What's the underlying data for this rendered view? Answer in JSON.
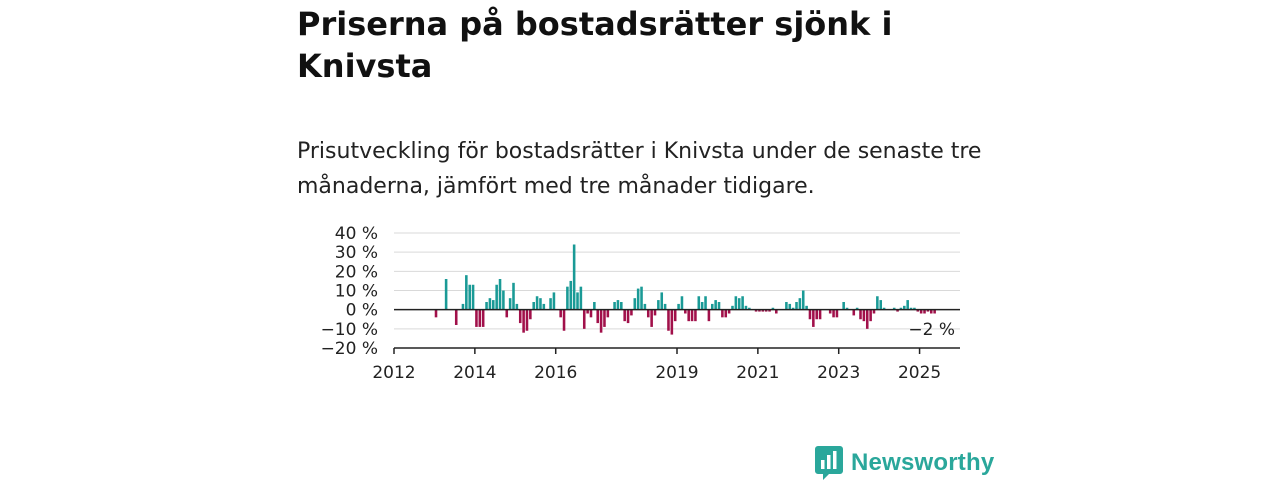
{
  "header": {
    "title": "Priserna på bostadsrätter sjönk i Knivsta",
    "subtitle": "Prisutveckling för bostadsrätter i Knivsta under de senaste tre månaderna, jämfört med tre månader tidigare."
  },
  "brand": {
    "name": "Newsworthy",
    "icon": "newsworthy-logo-icon",
    "color": "#2aa79b"
  },
  "colors": {
    "positive": "#1a9a96",
    "negative": "#a1104a",
    "grid": "#d9d9d9",
    "axis": "#222222"
  },
  "chart_data": {
    "type": "bar",
    "ylim": [
      -20,
      40
    ],
    "yticks": [
      40,
      30,
      20,
      10,
      0,
      -10,
      -20
    ],
    "ytick_labels": [
      "40 %",
      "30 %",
      "20 %",
      "10 %",
      "0 %",
      "−10 %",
      "−20 %"
    ],
    "xlim": [
      "2012-01",
      "2025-12"
    ],
    "xticks": [
      {
        "date": "2012-01",
        "label": "2012"
      },
      {
        "date": "2014-01",
        "label": "2014"
      },
      {
        "date": "2016-01",
        "label": "2016"
      },
      {
        "date": "2019-01",
        "label": "2019"
      },
      {
        "date": "2021-01",
        "label": "2021"
      },
      {
        "date": "2023-01",
        "label": "2023"
      },
      {
        "date": "2025-01",
        "label": "2025"
      }
    ],
    "grid": true,
    "last_value_label": "−2 %",
    "series": [
      {
        "points": [
          {
            "x": "2012-01",
            "y": 0
          },
          {
            "x": "2012-02",
            "y": 0
          },
          {
            "x": "2012-03",
            "y": 0
          },
          {
            "x": "2012-04",
            "y": 0
          },
          {
            "x": "2012-05",
            "y": 0
          },
          {
            "x": "2012-06",
            "y": 0
          },
          {
            "x": "2012-07",
            "y": 0
          },
          {
            "x": "2012-08",
            "y": 0
          },
          {
            "x": "2012-09",
            "y": 0
          },
          {
            "x": "2012-10",
            "y": 0
          },
          {
            "x": "2012-11",
            "y": 0
          },
          {
            "x": "2012-12",
            "y": 0
          },
          {
            "x": "2013-01",
            "y": -4
          },
          {
            "x": "2013-04",
            "y": 16
          },
          {
            "x": "2013-07",
            "y": -8
          },
          {
            "x": "2013-09",
            "y": 3
          },
          {
            "x": "2013-10",
            "y": 18
          },
          {
            "x": "2013-11",
            "y": 13
          },
          {
            "x": "2013-12",
            "y": 13
          },
          {
            "x": "2014-01",
            "y": -9
          },
          {
            "x": "2014-02",
            "y": -9
          },
          {
            "x": "2014-03",
            "y": -9
          },
          {
            "x": "2014-04",
            "y": 4
          },
          {
            "x": "2014-05",
            "y": 6
          },
          {
            "x": "2014-06",
            "y": 5
          },
          {
            "x": "2014-07",
            "y": 13
          },
          {
            "x": "2014-08",
            "y": 16
          },
          {
            "x": "2014-09",
            "y": 10
          },
          {
            "x": "2014-10",
            "y": -4
          },
          {
            "x": "2014-11",
            "y": 6
          },
          {
            "x": "2014-12",
            "y": 14
          },
          {
            "x": "2015-01",
            "y": 3
          },
          {
            "x": "2015-02",
            "y": -7
          },
          {
            "x": "2015-03",
            "y": -12
          },
          {
            "x": "2015-04",
            "y": -11
          },
          {
            "x": "2015-05",
            "y": -5
          },
          {
            "x": "2015-06",
            "y": 4
          },
          {
            "x": "2015-07",
            "y": 7
          },
          {
            "x": "2015-08",
            "y": 6
          },
          {
            "x": "2015-09",
            "y": 3
          },
          {
            "x": "2015-11",
            "y": 6
          },
          {
            "x": "2015-12",
            "y": 9
          },
          {
            "x": "2016-02",
            "y": -4
          },
          {
            "x": "2016-03",
            "y": -11
          },
          {
            "x": "2016-04",
            "y": 12
          },
          {
            "x": "2016-05",
            "y": 15
          },
          {
            "x": "2016-06",
            "y": 34
          },
          {
            "x": "2016-07",
            "y": 9
          },
          {
            "x": "2016-08",
            "y": 12
          },
          {
            "x": "2016-09",
            "y": -10
          },
          {
            "x": "2016-10",
            "y": -2
          },
          {
            "x": "2016-11",
            "y": -4
          },
          {
            "x": "2016-12",
            "y": 4
          },
          {
            "x": "2017-01",
            "y": -7
          },
          {
            "x": "2017-02",
            "y": -12
          },
          {
            "x": "2017-03",
            "y": -9
          },
          {
            "x": "2017-04",
            "y": -4
          },
          {
            "x": "2017-06",
            "y": 4
          },
          {
            "x": "2017-07",
            "y": 5
          },
          {
            "x": "2017-08",
            "y": 4
          },
          {
            "x": "2017-09",
            "y": -6
          },
          {
            "x": "2017-10",
            "y": -7
          },
          {
            "x": "2017-11",
            "y": -3
          },
          {
            "x": "2017-12",
            "y": 6
          },
          {
            "x": "2018-01",
            "y": 11
          },
          {
            "x": "2018-02",
            "y": 12
          },
          {
            "x": "2018-03",
            "y": 3
          },
          {
            "x": "2018-04",
            "y": -4
          },
          {
            "x": "2018-05",
            "y": -9
          },
          {
            "x": "2018-06",
            "y": -3
          },
          {
            "x": "2018-07",
            "y": 5
          },
          {
            "x": "2018-08",
            "y": 9
          },
          {
            "x": "2018-09",
            "y": 3
          },
          {
            "x": "2018-10",
            "y": -11
          },
          {
            "x": "2018-11",
            "y": -13
          },
          {
            "x": "2018-12",
            "y": -6
          },
          {
            "x": "2019-01",
            "y": 3
          },
          {
            "x": "2019-02",
            "y": 7
          },
          {
            "x": "2019-03",
            "y": -2
          },
          {
            "x": "2019-04",
            "y": -6
          },
          {
            "x": "2019-05",
            "y": -6
          },
          {
            "x": "2019-06",
            "y": -6
          },
          {
            "x": "2019-07",
            "y": 7
          },
          {
            "x": "2019-08",
            "y": 4
          },
          {
            "x": "2019-09",
            "y": 7
          },
          {
            "x": "2019-10",
            "y": -6
          },
          {
            "x": "2019-11",
            "y": 3
          },
          {
            "x": "2019-12",
            "y": 5
          },
          {
            "x": "2020-01",
            "y": 4
          },
          {
            "x": "2020-02",
            "y": -4
          },
          {
            "x": "2020-03",
            "y": -4
          },
          {
            "x": "2020-04",
            "y": -2
          },
          {
            "x": "2020-05",
            "y": 2
          },
          {
            "x": "2020-06",
            "y": 7
          },
          {
            "x": "2020-07",
            "y": 6
          },
          {
            "x": "2020-08",
            "y": 7
          },
          {
            "x": "2020-09",
            "y": 2
          },
          {
            "x": "2020-10",
            "y": 1
          },
          {
            "x": "2020-11",
            "y": 0
          },
          {
            "x": "2020-12",
            "y": -1
          },
          {
            "x": "2021-01",
            "y": -1
          },
          {
            "x": "2021-02",
            "y": -1
          },
          {
            "x": "2021-03",
            "y": -1
          },
          {
            "x": "2021-04",
            "y": -1
          },
          {
            "x": "2021-05",
            "y": 1
          },
          {
            "x": "2021-06",
            "y": -2
          },
          {
            "x": "2021-09",
            "y": 4
          },
          {
            "x": "2021-10",
            "y": 3
          },
          {
            "x": "2021-11",
            "y": 1
          },
          {
            "x": "2021-12",
            "y": 4
          },
          {
            "x": "2022-01",
            "y": 6
          },
          {
            "x": "2022-02",
            "y": 10
          },
          {
            "x": "2022-03",
            "y": 2
          },
          {
            "x": "2022-04",
            "y": -5
          },
          {
            "x": "2022-05",
            "y": -9
          },
          {
            "x": "2022-06",
            "y": -5
          },
          {
            "x": "2022-07",
            "y": -5
          },
          {
            "x": "2022-08",
            "y": 0
          },
          {
            "x": "2022-09",
            "y": 0
          },
          {
            "x": "2022-10",
            "y": -2
          },
          {
            "x": "2022-11",
            "y": -4
          },
          {
            "x": "2022-12",
            "y": -4
          },
          {
            "x": "2023-02",
            "y": 4
          },
          {
            "x": "2023-03",
            "y": 1
          },
          {
            "x": "2023-05",
            "y": -3
          },
          {
            "x": "2023-06",
            "y": 1
          },
          {
            "x": "2023-07",
            "y": -5
          },
          {
            "x": "2023-08",
            "y": -6
          },
          {
            "x": "2023-09",
            "y": -10
          },
          {
            "x": "2023-10",
            "y": -6
          },
          {
            "x": "2023-11",
            "y": -2
          },
          {
            "x": "2023-12",
            "y": 7
          },
          {
            "x": "2024-01",
            "y": 5
          },
          {
            "x": "2024-02",
            "y": 1
          },
          {
            "x": "2024-03",
            "y": 0
          },
          {
            "x": "2024-04",
            "y": 0
          },
          {
            "x": "2024-05",
            "y": 1
          },
          {
            "x": "2024-06",
            "y": -1
          },
          {
            "x": "2024-07",
            "y": 1
          },
          {
            "x": "2024-08",
            "y": 2
          },
          {
            "x": "2024-09",
            "y": 5
          },
          {
            "x": "2024-10",
            "y": 1
          },
          {
            "x": "2024-11",
            "y": 1
          },
          {
            "x": "2024-12",
            "y": -1
          },
          {
            "x": "2025-01",
            "y": -2
          },
          {
            "x": "2025-02",
            "y": -2
          },
          {
            "x": "2025-03",
            "y": -1
          },
          {
            "x": "2025-04",
            "y": -2
          },
          {
            "x": "2025-05",
            "y": -2
          }
        ]
      }
    ]
  }
}
